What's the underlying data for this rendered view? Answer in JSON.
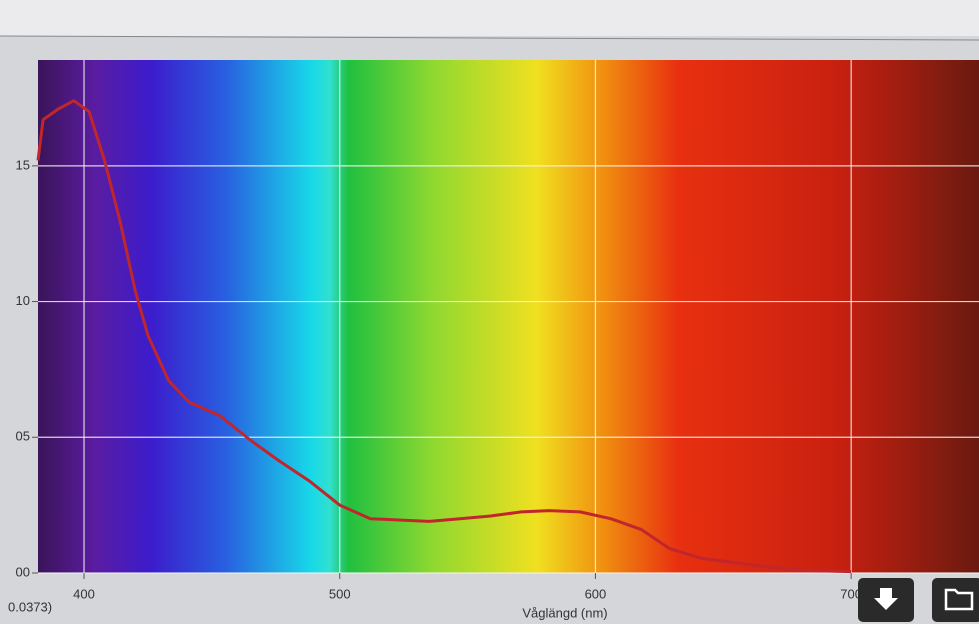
{
  "chart_data": {
    "type": "line",
    "x_label": "Våglängd (nm)",
    "annotations": [
      "0.0373)"
    ],
    "x": [
      382,
      384,
      390,
      396,
      402,
      408,
      414,
      420,
      425,
      433,
      441,
      453,
      465,
      476,
      488,
      500,
      512,
      524,
      535,
      547,
      559,
      571,
      582,
      594,
      606,
      618,
      629,
      641,
      661,
      680,
      700
    ],
    "values": [
      15.2,
      16.7,
      17.1,
      17.4,
      17.0,
      15.2,
      13.0,
      10.4,
      8.75,
      7.1,
      6.3,
      5.8,
      4.9,
      4.15,
      3.4,
      2.5,
      2.0,
      1.95,
      1.9,
      2.0,
      2.1,
      2.25,
      2.3,
      2.25,
      2.0,
      1.6,
      0.9,
      0.55,
      0.3,
      0.1,
      0.05
    ],
    "color": "#c0262c",
    "xlim": [
      382,
      750
    ],
    "ylim": [
      0,
      18.9
    ],
    "xticks": [
      400,
      500,
      600,
      700
    ],
    "yticks": [
      {
        "value": 15,
        "label": "15"
      },
      {
        "value": 10,
        "label": "10"
      },
      {
        "value": 5,
        "label": "05"
      },
      {
        "value": 0,
        "label": "00"
      }
    ],
    "grid": true
  }
}
